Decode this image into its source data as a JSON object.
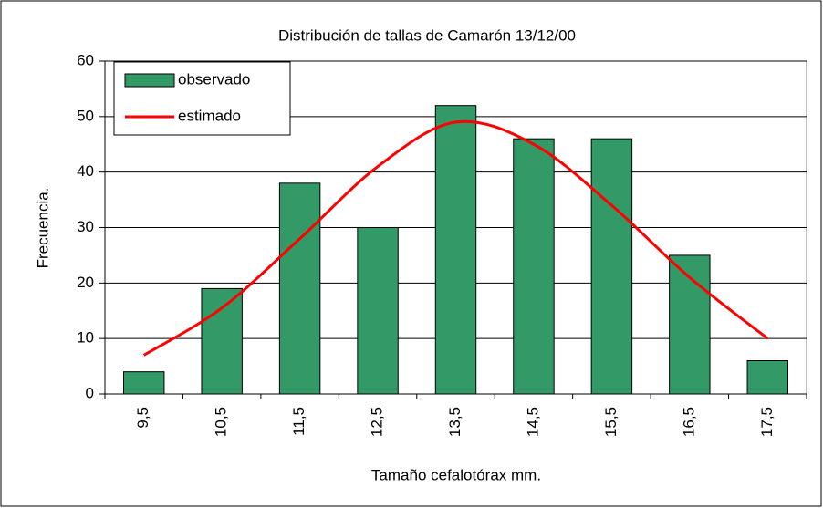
{
  "chart_data": {
    "type": "bar_line",
    "title": "Distribución de tallas de Camarón 13/12/00",
    "xlabel": "Tamaño cefalotórax mm.",
    "ylabel": "Frecuencia.",
    "categories": [
      "9,5",
      "10,5",
      "11,5",
      "12,5",
      "13,5",
      "14,5",
      "15,5",
      "16,5",
      "17,5"
    ],
    "series": [
      {
        "name": "observado",
        "type": "bar",
        "color": "#339966",
        "values": [
          4,
          19,
          38,
          30,
          52,
          46,
          46,
          25,
          6
        ]
      },
      {
        "name": "estimado",
        "type": "line",
        "color": "#ff0000",
        "values": [
          7,
          15.5,
          28,
          41,
          49,
          45,
          34,
          21,
          10
        ]
      }
    ],
    "ylim": [
      0,
      60
    ],
    "yticks": [
      0,
      10,
      20,
      30,
      40,
      50,
      60
    ],
    "grid": true,
    "legend": "upper left"
  }
}
